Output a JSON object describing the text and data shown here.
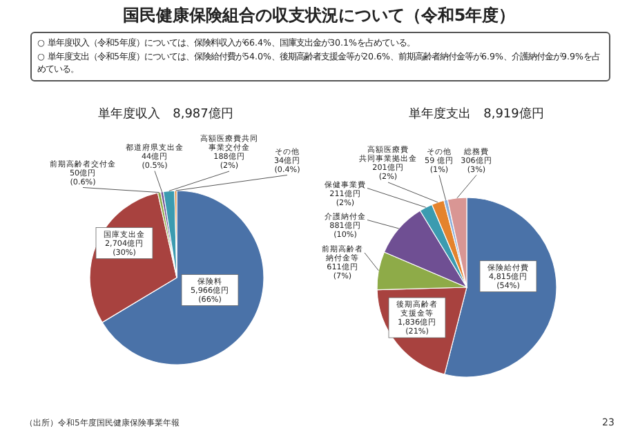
{
  "chart_data": [
    {
      "type": "pie",
      "title": "単年度収入　8,987億円",
      "categories": [
        "保険料",
        "国庫支出金",
        "前期高齢者交付金",
        "都道府県支出金",
        "高額医療費共同事業交付金",
        "その他"
      ],
      "values": [
        5966,
        2704,
        50,
        44,
        188,
        34
      ],
      "value_labels": [
        "5,966億円\n(66%)",
        "2,704億円\n(30%)",
        "50億円\n(0.6%)",
        "44億円\n(0.5%)",
        "188億円\n(2%)",
        "34億円\n(0.4%)"
      ],
      "colors": [
        "#4a72a8",
        "#a8423f",
        "#8eab48",
        "#6f4f93",
        "#3b9bb0",
        "#e4832d"
      ],
      "annotations": [
        "国民健康保険組合の収支状況について（令和5年度）",
        "○ 単年度収入（令和5年度）については、保険料収入が66.4%、国庫支出金が30.1%を占めている。",
        "○ 単年度支出（令和5年度）については、保険給付費が54.0%、後期高齢者支援金等が20.6%、前期高齢者納付金等が6.9%、介護納付金が9.9%を占めている。"
      ]
    },
    {
      "type": "pie",
      "title": "単年度支出　8,919億円",
      "categories": [
        "保険給付費",
        "後期高齢者支援金等",
        "前期高齢者納付金等",
        "介護納付金",
        "保健事業費",
        "高額医療費共同事業拠出金",
        "その他",
        "総務費"
      ],
      "values": [
        4815,
        1836,
        611,
        881,
        211,
        201,
        59,
        306
      ],
      "value_labels": [
        "4,815億円\n(54%)",
        "1,836億円\n(21%)",
        "611億円\n(7%)",
        "881億円\n(10%)",
        "211億円\n(2%)",
        "201億円\n(2%)",
        "59 億円\n(1%)",
        "306億円\n(3%)"
      ],
      "colors": [
        "#4a72a8",
        "#a8423f",
        "#8eab48",
        "#6f4f93",
        "#3b9bb0",
        "#e4832d",
        "#8cb0dc",
        "#d99694"
      ],
      "annotations": [
        "（出所）令和5年度国民健康保険事業年報",
        "23"
      ]
    }
  ]
}
